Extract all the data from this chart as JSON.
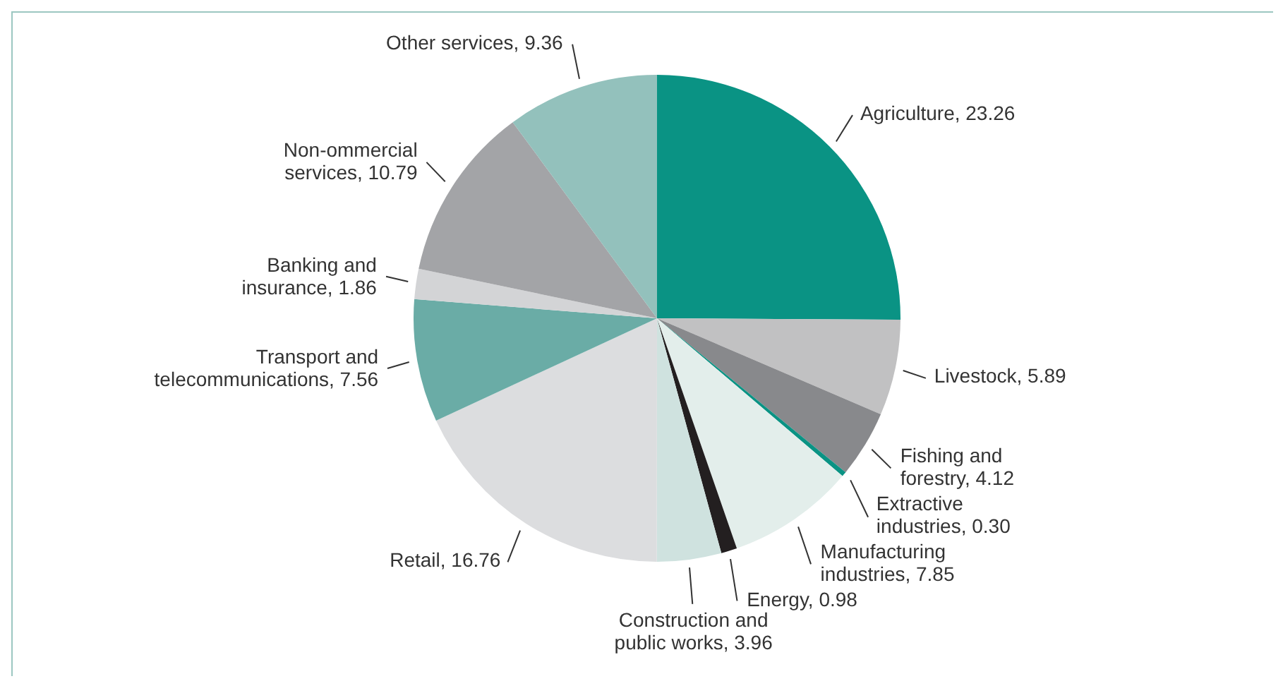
{
  "chart_data": {
    "type": "pie",
    "categories": [
      "Agriculture",
      "Livestock",
      "Fishing and forestry",
      "Extractive industries",
      "Manufacturing industries",
      "Energy",
      "Construction and public works",
      "Retail",
      "Transport and telecommunications",
      "Banking and insurance",
      "Non-ommercial services",
      "Other services"
    ],
    "values": [
      23.26,
      5.89,
      4.12,
      0.3,
      7.85,
      0.98,
      3.96,
      16.76,
      7.56,
      1.86,
      10.79,
      9.36
    ],
    "value_labels": [
      "23.26",
      "5.89",
      "4.12",
      "0.30",
      "7.85",
      "0.98",
      "3.96",
      "16.76",
      "7.56",
      "1.86",
      "10.79",
      "9.36"
    ],
    "colors": [
      "#0a9384",
      "#c1c1c2",
      "#88898c",
      "#0a9384",
      "#e3eeeb",
      "#231f20",
      "#cfe2df",
      "#dcdddf",
      "#6aaca6",
      "#d3d4d6",
      "#a3a4a7",
      "#93c1bc"
    ],
    "legend": false
  }
}
